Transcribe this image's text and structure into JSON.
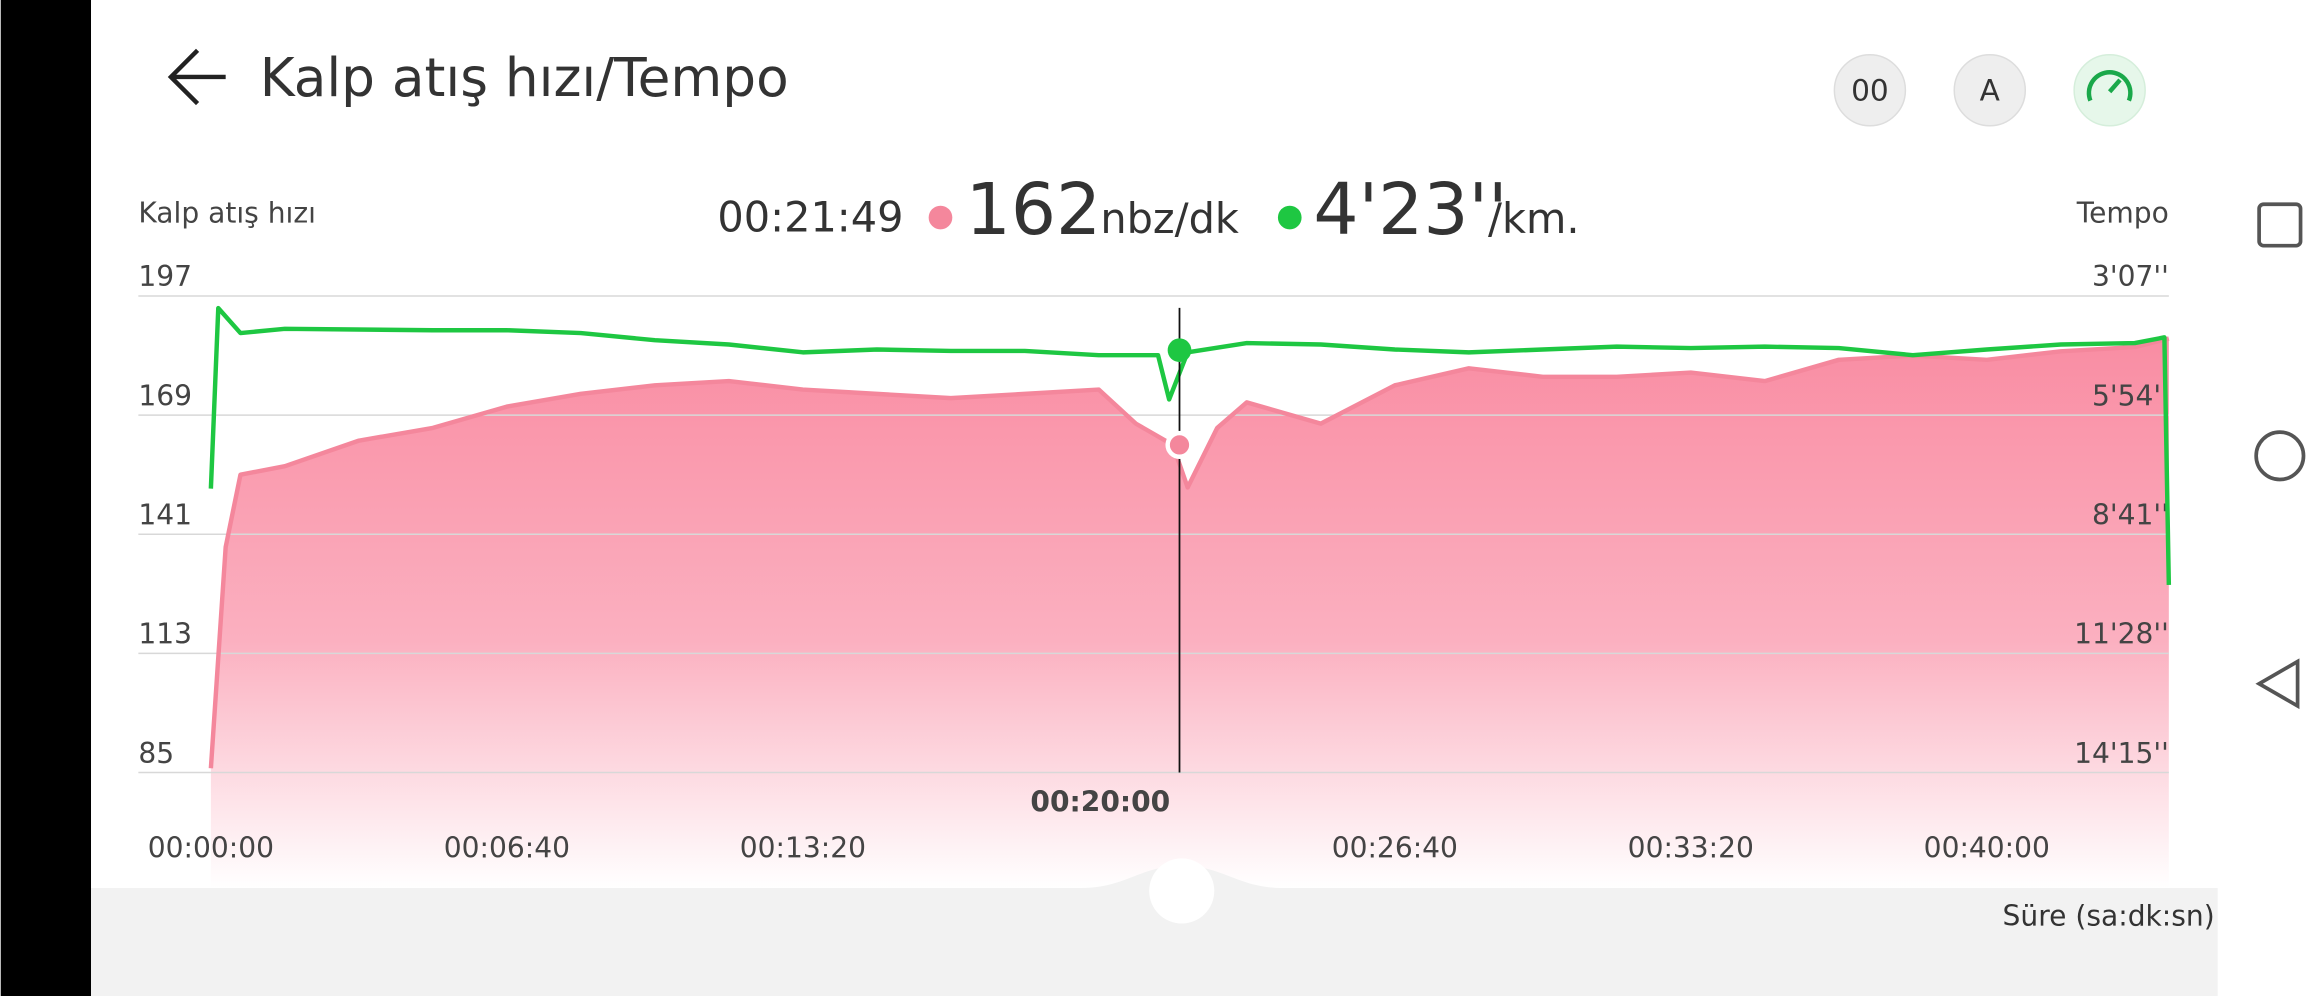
{
  "header": {
    "title": "Kalp atış hızı/Tempo"
  },
  "readout": {
    "time": "00:21:49",
    "heart_rate": "162",
    "heart_rate_unit": "nbz/dk",
    "pace": "4'23''",
    "pace_unit": "/km."
  },
  "footer": {
    "x_axis_label": "Süre (sa:dk:sn)"
  },
  "chart_data": {
    "type": "line",
    "y_label": "Kalp atış hızı",
    "y2_label": "Tempo",
    "xlim": [
      0,
      2646
    ],
    "xticks": [
      {
        "value": 0,
        "label": "00:00:00"
      },
      {
        "value": 400,
        "label": "00:06:40"
      },
      {
        "value": 800,
        "label": "00:13:20"
      },
      {
        "value": 1200,
        "label": "00:20:00"
      },
      {
        "value": 1600,
        "label": "00:26:40"
      },
      {
        "value": 2000,
        "label": "00:33:20"
      },
      {
        "value": 2400,
        "label": "00:40:00"
      }
    ],
    "ylim": [
      85,
      197
    ],
    "yticks": [
      197,
      169,
      141,
      113,
      85
    ],
    "y2lim": [
      187,
      855
    ],
    "y2_inverted": true,
    "y2ticks": [
      {
        "value": 187,
        "label": "3'07''"
      },
      {
        "value": 354,
        "label": "5'54''"
      },
      {
        "value": 521,
        "label": "8'41''"
      },
      {
        "value": 688,
        "label": "11'28''"
      },
      {
        "value": 855,
        "label": "14'15''"
      }
    ],
    "grid": true,
    "series": [
      {
        "name": "Kalp atış hızı",
        "color": "#f4879c",
        "fill": "area",
        "x": [
          0,
          20,
          40,
          100,
          200,
          300,
          400,
          500,
          600,
          700,
          800,
          900,
          1000,
          1100,
          1200,
          1250,
          1300,
          1320,
          1360,
          1400,
          1500,
          1600,
          1700,
          1800,
          1900,
          2000,
          2100,
          2200,
          2300,
          2400,
          2500,
          2600,
          2646
        ],
        "values": [
          86,
          138,
          155,
          157,
          163,
          166,
          171,
          174,
          176,
          177,
          175,
          174,
          173,
          174,
          175,
          167,
          162,
          152,
          166,
          172,
          167,
          176,
          180,
          178,
          178,
          179,
          177,
          182,
          183,
          182,
          184,
          185,
          187
        ]
      },
      {
        "name": "Tempo",
        "color": "#1ec742",
        "axis": "y2",
        "x": [
          0,
          10,
          40,
          100,
          300,
          400,
          500,
          600,
          700,
          800,
          900,
          1000,
          1100,
          1200,
          1280,
          1295,
          1320,
          1400,
          1500,
          1600,
          1700,
          1800,
          1900,
          2000,
          2100,
          2200,
          2300,
          2400,
          2500,
          2600,
          2640,
          2646
        ],
        "values": [
          457,
          204,
          239,
          233,
          235,
          235,
          239,
          249,
          255,
          266,
          262,
          264,
          264,
          270,
          270,
          332,
          266,
          253,
          255,
          262,
          266,
          262,
          258,
          260,
          258,
          260,
          270,
          262,
          255,
          253,
          245,
          592
        ]
      }
    ],
    "cursor": {
      "x": 1309,
      "heart_rate": 162,
      "pace": 263
    }
  }
}
